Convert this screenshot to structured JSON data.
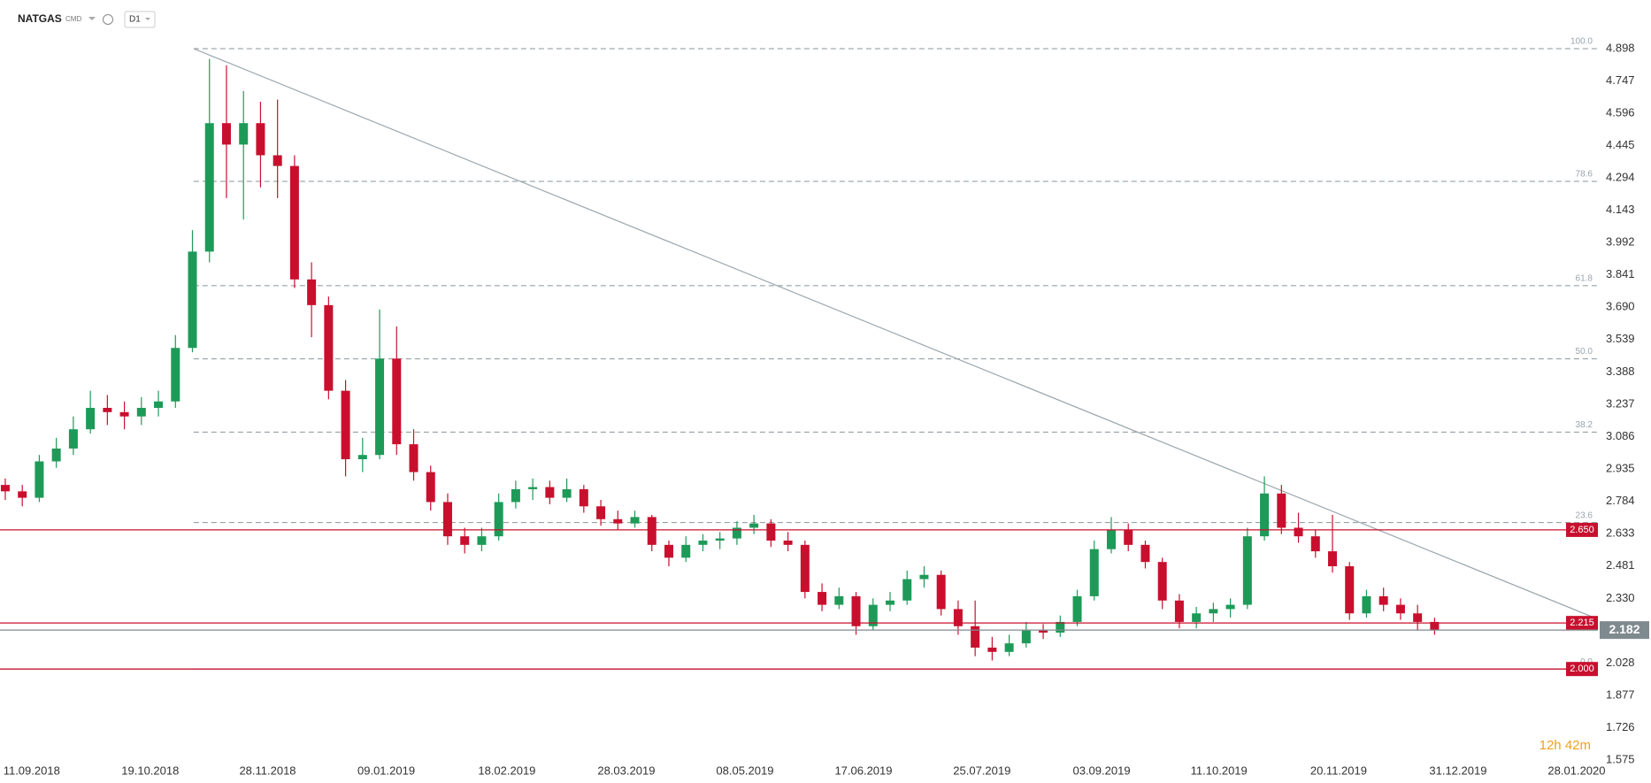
{
  "header": {
    "symbol": "NATGAS",
    "exchange": "CMD",
    "timeframe": "D1"
  },
  "chart_data": {
    "type": "candlestick",
    "colors": {
      "up": "#1e9a58",
      "down": "#c8102e"
    },
    "grid": false,
    "candles": [
      [
        2.86,
        2.89,
        2.79,
        2.83
      ],
      [
        2.83,
        2.86,
        2.76,
        2.8
      ],
      [
        2.8,
        3.0,
        2.78,
        2.97
      ],
      [
        2.97,
        3.08,
        2.94,
        3.03
      ],
      [
        3.03,
        3.18,
        3.0,
        3.12
      ],
      [
        3.12,
        3.3,
        3.1,
        3.22
      ],
      [
        3.22,
        3.28,
        3.14,
        3.2
      ],
      [
        3.2,
        3.25,
        3.12,
        3.18
      ],
      [
        3.18,
        3.27,
        3.14,
        3.22
      ],
      [
        3.22,
        3.3,
        3.18,
        3.25
      ],
      [
        3.25,
        3.56,
        3.22,
        3.5
      ],
      [
        3.5,
        4.05,
        3.48,
        3.95
      ],
      [
        3.95,
        4.85,
        3.9,
        4.55
      ],
      [
        4.55,
        4.82,
        4.2,
        4.45
      ],
      [
        4.45,
        4.7,
        4.1,
        4.55
      ],
      [
        4.55,
        4.65,
        4.25,
        4.4
      ],
      [
        4.4,
        4.66,
        4.2,
        4.35
      ],
      [
        4.35,
        4.4,
        3.78,
        3.82
      ],
      [
        3.82,
        3.9,
        3.55,
        3.7
      ],
      [
        3.7,
        3.74,
        3.26,
        3.3
      ],
      [
        3.3,
        3.35,
        2.9,
        2.98
      ],
      [
        2.98,
        3.08,
        2.92,
        3.0
      ],
      [
        3.0,
        3.68,
        2.98,
        3.45
      ],
      [
        3.45,
        3.6,
        3.0,
        3.05
      ],
      [
        3.05,
        3.12,
        2.88,
        2.92
      ],
      [
        2.92,
        2.95,
        2.74,
        2.78
      ],
      [
        2.78,
        2.82,
        2.58,
        2.62
      ],
      [
        2.62,
        2.66,
        2.54,
        2.58
      ],
      [
        2.58,
        2.66,
        2.55,
        2.62
      ],
      [
        2.62,
        2.82,
        2.6,
        2.78
      ],
      [
        2.78,
        2.88,
        2.75,
        2.84
      ],
      [
        2.84,
        2.89,
        2.79,
        2.85
      ],
      [
        2.85,
        2.88,
        2.77,
        2.8
      ],
      [
        2.8,
        2.89,
        2.78,
        2.84
      ],
      [
        2.84,
        2.86,
        2.73,
        2.76
      ],
      [
        2.76,
        2.79,
        2.67,
        2.7
      ],
      [
        2.7,
        2.74,
        2.65,
        2.68
      ],
      [
        2.68,
        2.74,
        2.66,
        2.71
      ],
      [
        2.71,
        2.72,
        2.55,
        2.58
      ],
      [
        2.58,
        2.6,
        2.48,
        2.52
      ],
      [
        2.52,
        2.62,
        2.5,
        2.58
      ],
      [
        2.58,
        2.63,
        2.55,
        2.6
      ],
      [
        2.6,
        2.64,
        2.56,
        2.61
      ],
      [
        2.61,
        2.69,
        2.58,
        2.66
      ],
      [
        2.66,
        2.72,
        2.63,
        2.68
      ],
      [
        2.68,
        2.7,
        2.57,
        2.6
      ],
      [
        2.6,
        2.64,
        2.55,
        2.58
      ],
      [
        2.58,
        2.6,
        2.33,
        2.36
      ],
      [
        2.36,
        2.4,
        2.27,
        2.3
      ],
      [
        2.3,
        2.38,
        2.28,
        2.34
      ],
      [
        2.34,
        2.36,
        2.16,
        2.2
      ],
      [
        2.2,
        2.33,
        2.18,
        2.3
      ],
      [
        2.3,
        2.36,
        2.27,
        2.32
      ],
      [
        2.32,
        2.46,
        2.3,
        2.42
      ],
      [
        2.42,
        2.48,
        2.38,
        2.44
      ],
      [
        2.44,
        2.46,
        2.25,
        2.28
      ],
      [
        2.28,
        2.32,
        2.16,
        2.2
      ],
      [
        2.2,
        2.32,
        2.06,
        2.1
      ],
      [
        2.1,
        2.15,
        2.04,
        2.08
      ],
      [
        2.08,
        2.16,
        2.06,
        2.12
      ],
      [
        2.12,
        2.22,
        2.1,
        2.18
      ],
      [
        2.18,
        2.21,
        2.14,
        2.17
      ],
      [
        2.17,
        2.25,
        2.15,
        2.22
      ],
      [
        2.22,
        2.37,
        2.2,
        2.34
      ],
      [
        2.34,
        2.6,
        2.32,
        2.56
      ],
      [
        2.56,
        2.71,
        2.54,
        2.65
      ],
      [
        2.65,
        2.68,
        2.55,
        2.58
      ],
      [
        2.58,
        2.6,
        2.47,
        2.5
      ],
      [
        2.5,
        2.52,
        2.28,
        2.32
      ],
      [
        2.32,
        2.35,
        2.19,
        2.22
      ],
      [
        2.22,
        2.29,
        2.19,
        2.26
      ],
      [
        2.26,
        2.31,
        2.22,
        2.28
      ],
      [
        2.28,
        2.33,
        2.24,
        2.3
      ],
      [
        2.3,
        2.66,
        2.28,
        2.62
      ],
      [
        2.62,
        2.9,
        2.6,
        2.82
      ],
      [
        2.82,
        2.86,
        2.63,
        2.66
      ],
      [
        2.66,
        2.73,
        2.59,
        2.62
      ],
      [
        2.62,
        2.65,
        2.52,
        2.55
      ],
      [
        2.55,
        2.72,
        2.45,
        2.48
      ],
      [
        2.48,
        2.5,
        2.23,
        2.26
      ],
      [
        2.26,
        2.37,
        2.24,
        2.34
      ],
      [
        2.34,
        2.38,
        2.27,
        2.3
      ],
      [
        2.3,
        2.33,
        2.23,
        2.26
      ],
      [
        2.26,
        2.3,
        2.18,
        2.22
      ],
      [
        2.22,
        2.24,
        2.16,
        2.182
      ]
    ],
    "xlim": [
      -0.31,
      93.6
    ],
    "xticks": [
      {
        "value": 1.55,
        "label": "11.09.2018"
      },
      {
        "value": 8.52,
        "label": "19.10.2018"
      },
      {
        "value": 15.42,
        "label": "28.11.2018"
      },
      {
        "value": 22.39,
        "label": "09.01.2019"
      },
      {
        "value": 29.48,
        "label": "18.02.2019"
      },
      {
        "value": 36.5,
        "label": "28.03.2019"
      },
      {
        "value": 43.47,
        "label": "08.05.2019"
      },
      {
        "value": 50.44,
        "label": "17.06.2019"
      },
      {
        "value": 57.4,
        "label": "25.07.2019"
      },
      {
        "value": 64.43,
        "label": "03.09.2019"
      },
      {
        "value": 71.33,
        "label": "11.10.2019"
      },
      {
        "value": 78.36,
        "label": "20.11.2019"
      },
      {
        "value": 85.38,
        "label": "31.12.2019"
      },
      {
        "value": 92.35,
        "label": "28.01.2020"
      }
    ],
    "ylim": [
      1.575,
      4.898
    ],
    "yticks": [
      4.898,
      4.747,
      4.596,
      4.445,
      4.294,
      4.143,
      3.992,
      3.841,
      {
        "value": 3.69,
        "label": "3.690"
      },
      3.539,
      3.388,
      3.237,
      3.086,
      2.935,
      2.784,
      2.633,
      2.481,
      {
        "value": 2.33,
        "label": "2.330"
      },
      2.028,
      1.877,
      1.726,
      1.575
    ],
    "fib": [
      {
        "level": "100.0",
        "price": 4.898
      },
      {
        "level": "78.6",
        "price": 4.278
      },
      {
        "level": "61.8",
        "price": 3.791
      },
      {
        "level": "50.0",
        "price": 3.449
      },
      {
        "level": "38.2",
        "price": 3.107
      },
      {
        "level": "23.6",
        "price": 2.684
      },
      {
        "level": "0.0",
        "price": 2.0
      }
    ],
    "fib_start": 11.07,
    "trendline": {
      "x": [
        11.07,
        93.6
      ],
      "y": [
        4.898,
        2.233
      ]
    },
    "levels": [
      {
        "value": 2.65,
        "label": "2.650"
      },
      {
        "value": 2.215,
        "label": "2.215"
      },
      {
        "value": 2.0,
        "label": "2.000"
      }
    ],
    "level_color": "#c8102e",
    "current": {
      "value": 2.182,
      "label": "2.182",
      "color": "#7f8a8f"
    },
    "countdown": "12h 42m"
  }
}
